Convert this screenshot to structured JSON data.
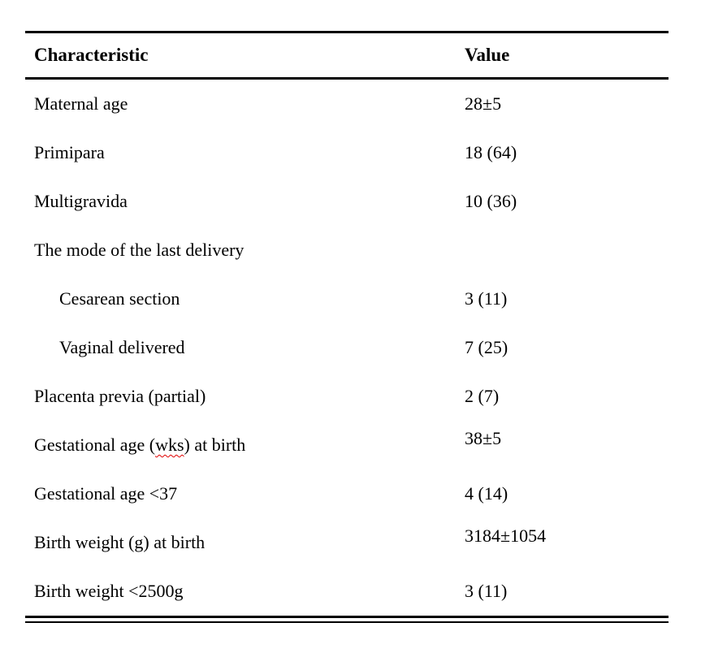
{
  "document": {
    "background_color": "#ffffff",
    "text_color": "#000000",
    "rule_color": "#000000",
    "spellcheck_squiggle_color": "#e00000"
  },
  "table": {
    "columns": [
      "Characteristic",
      "Value"
    ],
    "rows": [
      {
        "label": "Maternal age",
        "value": "28±5",
        "indent": false
      },
      {
        "label": "Primipara",
        "value": "18 (64)",
        "indent": false
      },
      {
        "label": "Multigravida",
        "value": "10 (36)",
        "indent": false
      },
      {
        "label": "The mode of the last delivery",
        "value": "",
        "indent": false
      },
      {
        "label": "Cesarean section",
        "value": "3 (11)",
        "indent": true
      },
      {
        "label": "Vaginal delivered",
        "value": "7 (25)",
        "indent": true
      },
      {
        "label": "Placenta previa (partial)",
        "value": "2 (7)",
        "indent": false
      },
      {
        "label_parts": {
          "before": "Gestational age (",
          "misspelled": "wks",
          "after": ") at birth"
        },
        "value": "38±5",
        "indent": false
      },
      {
        "label": "Gestational age <37",
        "value": "4 (14)",
        "indent": false
      },
      {
        "label": "Birth weight (g) at birth",
        "value": "3184±1054",
        "indent": false
      },
      {
        "label": "Birth weight <2500g",
        "value": "3 (11)",
        "indent": false
      }
    ]
  }
}
